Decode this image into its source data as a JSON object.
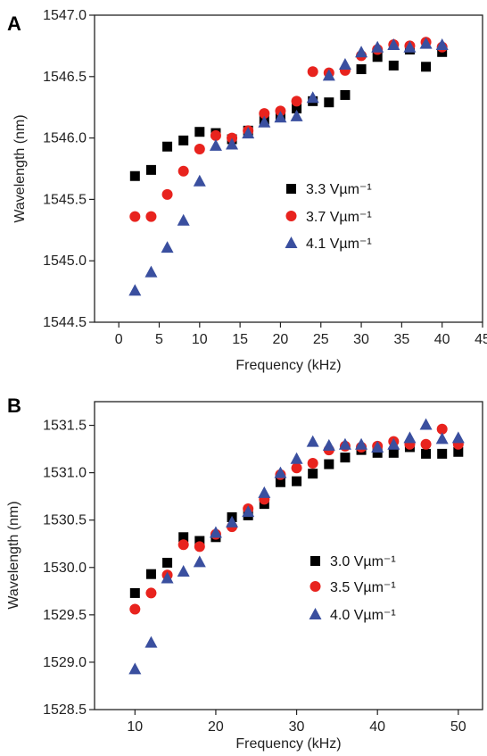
{
  "colors": {
    "square": "#000000",
    "circle": "#e8231e",
    "triangle": "#3a4f9f",
    "frame": "#222222"
  },
  "chart_data": [
    {
      "panel": "A",
      "type": "scatter",
      "xlabel": "Frequency (kHz)",
      "ylabel": "Wavelength (nm)",
      "xlim": [
        -3,
        45
      ],
      "ylim": [
        1544.5,
        1547.0
      ],
      "xticks": [
        0,
        5,
        10,
        15,
        20,
        25,
        30,
        35,
        40,
        45
      ],
      "yticks": [
        "1544.5",
        "1545.0",
        "1545.5",
        "1546.0",
        "1546.5",
        "1547.0"
      ],
      "legend_position": "middle-right",
      "series": [
        {
          "name": "3.3 Vµm⁻¹",
          "marker": "square",
          "x": [
            2,
            4,
            6,
            8,
            10,
            12,
            14,
            16,
            18,
            20,
            22,
            24,
            26,
            28,
            30,
            32,
            34,
            36,
            38,
            40
          ],
          "y": [
            1545.69,
            1545.74,
            1545.93,
            1545.98,
            1546.05,
            1546.04,
            1545.99,
            1546.06,
            1546.15,
            1546.18,
            1546.24,
            1546.3,
            1546.29,
            1546.35,
            1546.56,
            1546.66,
            1546.59,
            1546.72,
            1546.58,
            1546.7
          ]
        },
        {
          "name": "3.7 Vµm⁻¹",
          "marker": "circle",
          "x": [
            2,
            4,
            6,
            8,
            10,
            12,
            14,
            16,
            18,
            20,
            22,
            24,
            26,
            28,
            30,
            32,
            34,
            36,
            38,
            40
          ],
          "y": [
            1545.36,
            1545.36,
            1545.54,
            1545.73,
            1545.91,
            1546.02,
            1546.0,
            1546.06,
            1546.2,
            1546.22,
            1546.3,
            1546.54,
            1546.53,
            1546.55,
            1546.67,
            1546.72,
            1546.76,
            1546.75,
            1546.78,
            1546.74
          ]
        },
        {
          "name": "4.1 Vµm⁻¹",
          "marker": "triangle",
          "x": [
            2,
            4,
            6,
            8,
            10,
            12,
            14,
            16,
            18,
            20,
            22,
            24,
            26,
            28,
            30,
            32,
            34,
            36,
            38,
            40
          ],
          "y": [
            1544.76,
            1544.91,
            1545.11,
            1545.33,
            1545.65,
            1545.94,
            1545.95,
            1546.04,
            1546.13,
            1546.17,
            1546.18,
            1546.33,
            1546.51,
            1546.6,
            1546.7,
            1546.74,
            1546.76,
            1546.74,
            1546.77,
            1546.76
          ]
        }
      ]
    },
    {
      "panel": "B",
      "type": "scatter",
      "xlabel": "Frequency (kHz)",
      "ylabel": "Wavelength (nm)",
      "xlim": [
        5,
        53
      ],
      "ylim": [
        1528.5,
        1531.75
      ],
      "xticks": [
        10,
        20,
        30,
        40,
        50
      ],
      "yticks": [
        "1528.5",
        "1529.0",
        "1529.5",
        "1530.0",
        "1530.5",
        "1531.0",
        "1531.5"
      ],
      "legend_position": "middle-right",
      "series": [
        {
          "name": "3.0 Vµm⁻¹",
          "marker": "square",
          "x": [
            10,
            12,
            14,
            16,
            18,
            20,
            22,
            24,
            26,
            28,
            30,
            32,
            34,
            36,
            38,
            40,
            42,
            44,
            46,
            48,
            50
          ],
          "y": [
            1529.73,
            1529.93,
            1530.05,
            1530.32,
            1530.28,
            1530.32,
            1530.53,
            1530.55,
            1530.67,
            1530.9,
            1530.91,
            1530.99,
            1531.09,
            1531.16,
            1531.24,
            1531.21,
            1531.21,
            1531.27,
            1531.2,
            1531.2,
            1531.22
          ]
        },
        {
          "name": "3.5 Vµm⁻¹",
          "marker": "circle",
          "x": [
            10,
            12,
            14,
            16,
            18,
            20,
            22,
            24,
            26,
            28,
            30,
            32,
            34,
            36,
            38,
            40,
            42,
            44,
            46,
            48,
            50
          ],
          "y": [
            1529.56,
            1529.73,
            1529.92,
            1530.24,
            1530.22,
            1530.35,
            1530.43,
            1530.62,
            1530.72,
            1530.98,
            1531.05,
            1531.1,
            1531.24,
            1531.28,
            1531.27,
            1531.28,
            1531.33,
            1531.3,
            1531.3,
            1531.46,
            1531.3
          ]
        },
        {
          "name": "4.0 Vµm⁻¹",
          "marker": "triangle",
          "x": [
            10,
            12,
            14,
            16,
            18,
            20,
            22,
            24,
            26,
            28,
            30,
            32,
            34,
            36,
            38,
            40,
            42,
            44,
            46,
            48,
            50
          ],
          "y": [
            1528.93,
            1529.21,
            1529.89,
            1529.96,
            1530.06,
            1530.37,
            1530.48,
            1530.59,
            1530.79,
            1531.0,
            1531.15,
            1531.33,
            1531.29,
            1531.3,
            1531.3,
            1531.27,
            1531.3,
            1531.37,
            1531.51,
            1531.36,
            1531.37
          ]
        }
      ]
    }
  ]
}
